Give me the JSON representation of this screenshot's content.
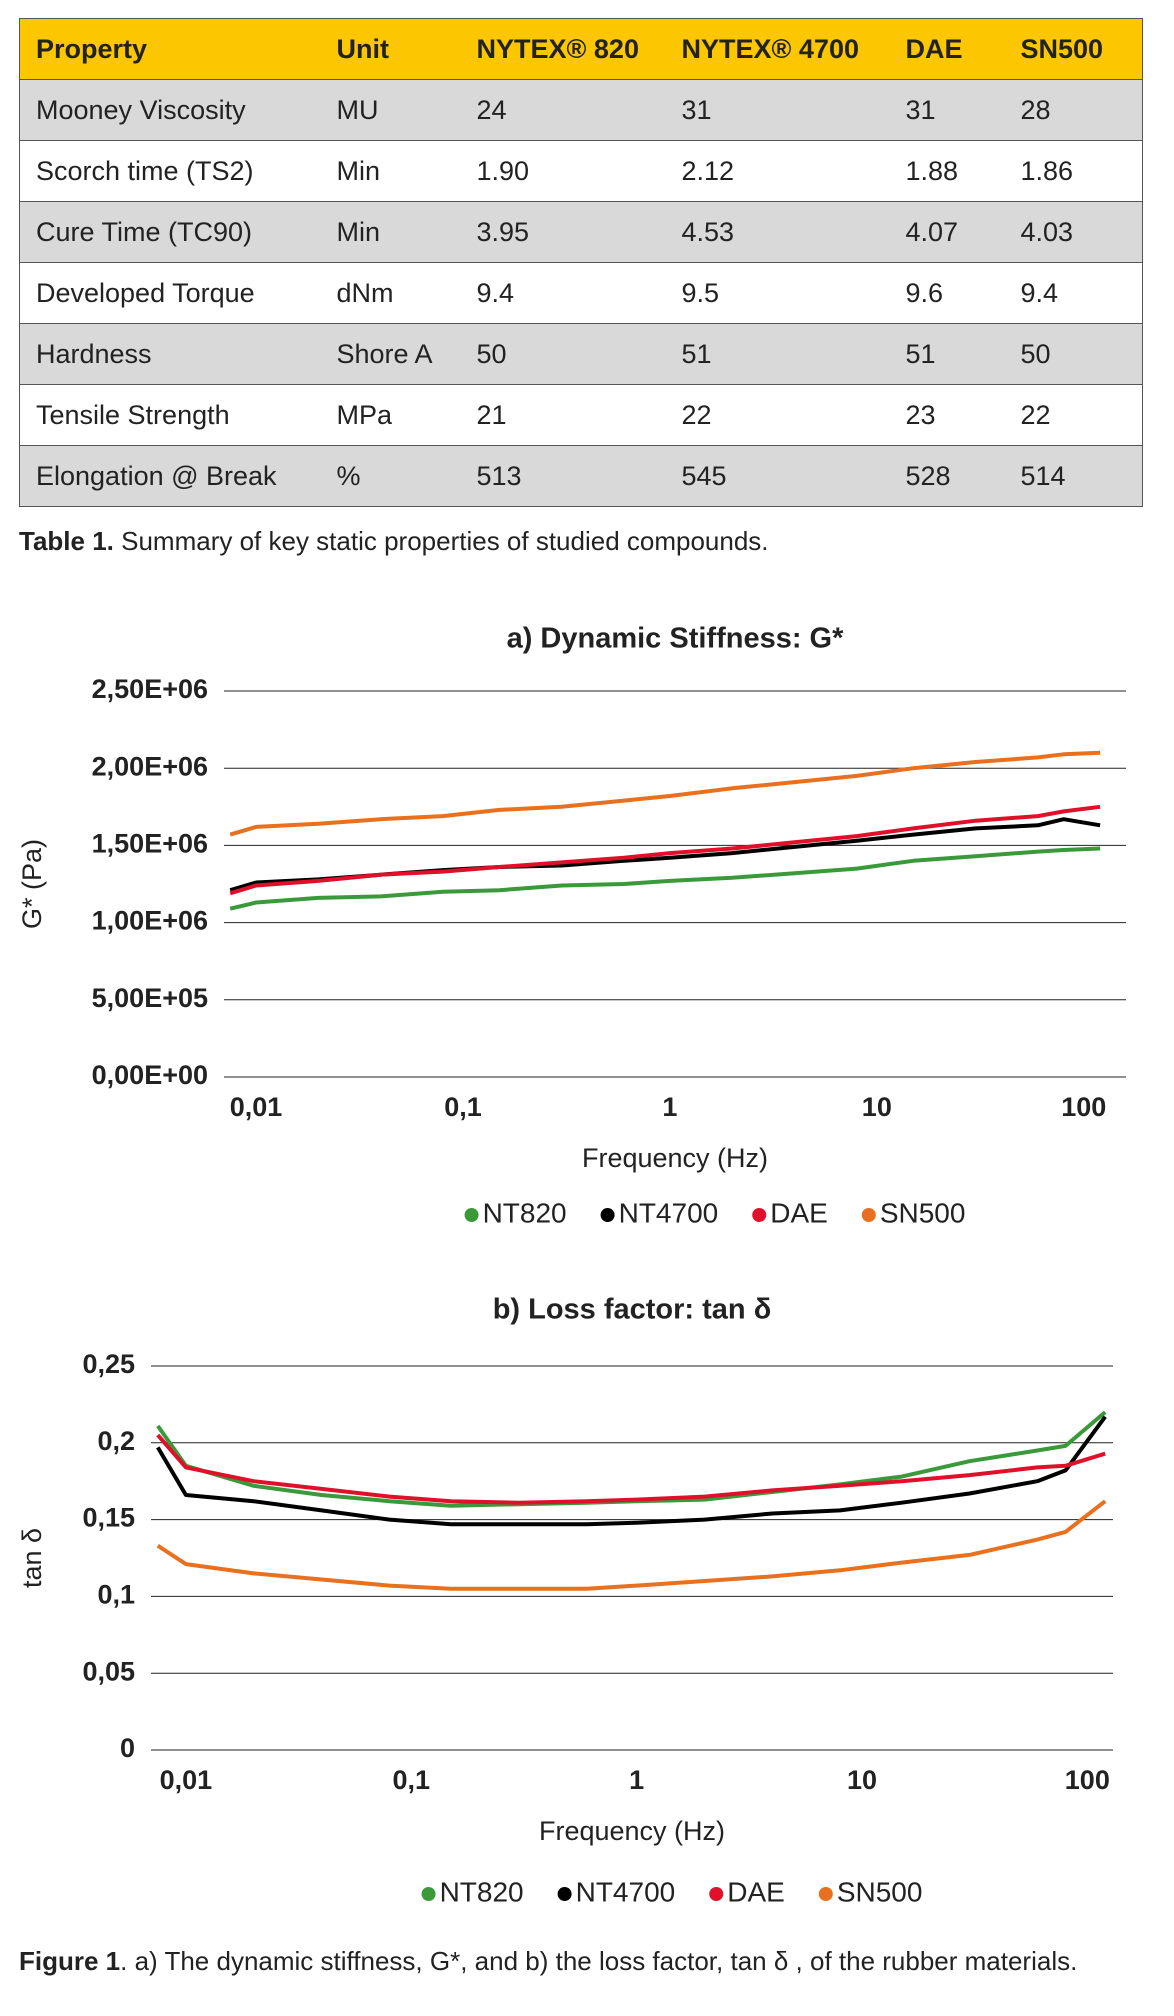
{
  "table": {
    "header": [
      "Property",
      "Unit",
      "NYTEX® 820",
      "NYTEX® 4700",
      "DAE",
      "SN500"
    ],
    "rows": [
      [
        "Mooney Viscosity",
        "MU",
        "24",
        "31",
        "31",
        "28"
      ],
      [
        "Scorch time (TS2)",
        "Min",
        "1.90",
        "2.12",
        "1.88",
        "1.86"
      ],
      [
        "Cure Time (TC90)",
        "Min",
        "3.95",
        "4.53",
        "4.07",
        "4.03"
      ],
      [
        "Developed Torque",
        "dNm",
        "9.4",
        "9.5",
        "9.6",
        "9.4"
      ],
      [
        "Hardness",
        "Shore A",
        "50",
        "51",
        "51",
        "50"
      ],
      [
        "Tensile Strength",
        "MPa",
        "21",
        "22",
        "23",
        "22"
      ],
      [
        "Elongation @ Break",
        "%",
        "513",
        "545",
        "528",
        "514"
      ]
    ]
  },
  "table_caption": {
    "label": "Table 1.",
    "text": "Summary of key static properties of studied compounds."
  },
  "chart_data": [
    {
      "type": "line",
      "title": "a) Dynamic Stiffness: G*",
      "xlabel": "Frequency (Hz)",
      "ylabel": "G* (Pa)",
      "xscale": "log",
      "grid": "y",
      "xlim": [
        0.007,
        160
      ],
      "xticks": [
        {
          "value": 0.01,
          "label": "0,01"
        },
        {
          "value": 0.1,
          "label": "0,1"
        },
        1,
        10,
        100
      ],
      "ylim": [
        0,
        2500000
      ],
      "yticks": [
        {
          "value": 0,
          "label": "0,00E+00"
        },
        {
          "value": 500000,
          "label": "5,00E+05"
        },
        {
          "value": 1000000,
          "label": "1,00E+06"
        },
        {
          "value": 1500000,
          "label": "1,50E+06"
        },
        {
          "value": 2000000,
          "label": "2,00E+06"
        },
        {
          "value": 2500000,
          "label": "2,50E+06"
        }
      ],
      "x": [
        0.0075,
        0.01,
        0.02,
        0.04,
        0.08,
        0.15,
        0.3,
        0.6,
        1,
        2,
        4,
        8,
        15,
        30,
        60,
        80,
        120
      ],
      "series": [
        {
          "name": "NT820",
          "color": "#3a9a3a",
          "values": [
            1090000,
            1130000,
            1160000,
            1170000,
            1200000,
            1210000,
            1240000,
            1250000,
            1270000,
            1290000,
            1320000,
            1350000,
            1400000,
            1430000,
            1460000,
            1470000,
            1480000
          ]
        },
        {
          "name": "NT4700",
          "color": "#000000",
          "values": [
            1210000,
            1260000,
            1280000,
            1310000,
            1340000,
            1360000,
            1370000,
            1400000,
            1420000,
            1450000,
            1490000,
            1530000,
            1570000,
            1610000,
            1630000,
            1670000,
            1630000
          ]
        },
        {
          "name": "DAE",
          "color": "#e0102a",
          "values": [
            1190000,
            1240000,
            1270000,
            1310000,
            1330000,
            1360000,
            1390000,
            1420000,
            1450000,
            1480000,
            1520000,
            1560000,
            1610000,
            1660000,
            1690000,
            1720000,
            1750000
          ]
        },
        {
          "name": "SN500",
          "color": "#e8701e",
          "values": [
            1570000,
            1620000,
            1640000,
            1670000,
            1690000,
            1730000,
            1750000,
            1790000,
            1820000,
            1870000,
            1910000,
            1950000,
            2000000,
            2040000,
            2070000,
            2090000,
            2100000
          ]
        }
      ]
    },
    {
      "type": "line",
      "title": "b) Loss factor: tan δ",
      "xlabel": "Frequency (Hz)",
      "ylabel": "tan δ",
      "xscale": "log",
      "grid": "y",
      "xlim": [
        0.007,
        130
      ],
      "xticks": [
        {
          "value": 0.01,
          "label": "0,01"
        },
        {
          "value": 0.1,
          "label": "0,1"
        },
        1,
        10,
        100
      ],
      "ylim": [
        0,
        0.25
      ],
      "yticks": [
        0,
        {
          "value": 0.05,
          "label": "0,05"
        },
        {
          "value": 0.1,
          "label": "0,1"
        },
        {
          "value": 0.15,
          "label": "0,15"
        },
        {
          "value": 0.2,
          "label": "0,2"
        },
        {
          "value": 0.25,
          "label": "0,25"
        }
      ],
      "x": [
        0.0075,
        0.01,
        0.02,
        0.04,
        0.08,
        0.15,
        0.3,
        0.6,
        1,
        2,
        4,
        8,
        15,
        30,
        60,
        80,
        120
      ],
      "series": [
        {
          "name": "NT820",
          "color": "#3a9a3a",
          "values": [
            0.211,
            0.185,
            0.172,
            0.166,
            0.162,
            0.159,
            0.16,
            0.161,
            0.162,
            0.163,
            0.168,
            0.173,
            0.178,
            0.188,
            0.195,
            0.198,
            0.22
          ]
        },
        {
          "name": "NT4700",
          "color": "#000000",
          "values": [
            0.197,
            0.166,
            0.162,
            0.156,
            0.15,
            0.147,
            0.147,
            0.147,
            0.148,
            0.15,
            0.154,
            0.156,
            0.161,
            0.167,
            0.175,
            0.182,
            0.217
          ]
        },
        {
          "name": "DAE",
          "color": "#e0102a",
          "values": [
            0.205,
            0.184,
            0.175,
            0.17,
            0.165,
            0.162,
            0.161,
            0.162,
            0.163,
            0.165,
            0.169,
            0.172,
            0.175,
            0.179,
            0.184,
            0.185,
            0.193
          ]
        },
        {
          "name": "SN500",
          "color": "#e8701e",
          "values": [
            0.133,
            0.121,
            0.115,
            0.111,
            0.107,
            0.105,
            0.105,
            0.105,
            0.107,
            0.11,
            0.113,
            0.117,
            0.122,
            0.127,
            0.137,
            0.142,
            0.162
          ]
        }
      ]
    }
  ],
  "figure_caption": {
    "label": "Figure 1",
    "text": ". a) The dynamic stiffness, G*, and b) the loss factor, tan δ , of the rubber materials."
  }
}
